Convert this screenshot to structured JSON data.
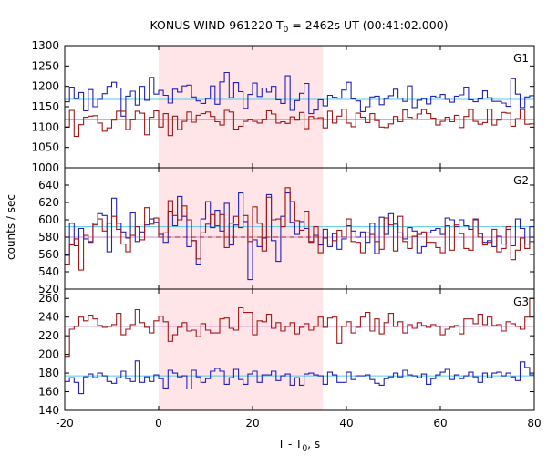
{
  "chart_data": {
    "type": "line",
    "title": "KONUS-WIND 961220 T",
    "title_sub": "0",
    "title_rest": " = 2462s UT (00:41:02.000)",
    "xlabel": "T - T",
    "xlabel_sub": "0",
    "xlabel_rest": ", s",
    "ylabel": "counts / sec",
    "xlim": [
      -20,
      80
    ],
    "x_ticks": [
      -20,
      0,
      20,
      40,
      60,
      80
    ],
    "x_tick_labels": [
      "-20",
      "0",
      "20",
      "40",
      "60",
      "80"
    ],
    "shaded_interval": [
      0,
      35
    ],
    "shade_color": "#ffe4e8",
    "bin_width_s": 1.0,
    "bin_start_s": -20.0,
    "panels": [
      {
        "label": "G1",
        "ylim": [
          1000,
          1300
        ],
        "y_ticks": [
          1000,
          1050,
          1100,
          1150,
          1200,
          1250,
          1300
        ],
        "y_tick_labels": [
          "1000",
          "1050",
          "1100",
          "1150",
          "1200",
          "1250",
          "1300"
        ],
        "series": [
          {
            "color": "#2222bb",
            "values": [
              1162,
              1198,
              1170,
              1185,
              1140,
              1192,
              1150,
              1168,
              1182,
              1200,
              1210,
              1196,
              1127,
              1176,
              1188,
              1154,
              1200,
              1166,
              1222,
              1181,
              1190,
              1178,
              1159,
              1193,
              1186,
              1201,
              1203,
              1174,
              1164,
              1158,
              1170,
              1201,
              1156,
              1211,
              1234,
              1172,
              1209,
              1187,
              1146,
              1180,
              1208,
              1175,
              1196,
              1186,
              1200,
              1167,
              1158,
              1226,
              1141,
              1165,
              1183,
              1207,
              1133,
              1142,
              1167,
              1152,
              1178,
              1173,
              1171,
              1191,
              1210,
              1169,
              1164,
              1138,
              1150,
              1174,
              1176,
              1155,
              1170,
              1177,
              1193,
              1171,
              1163,
              1201,
              1148,
              1166,
              1170,
              1157,
              1176,
              1172,
              1180,
              1168,
              1161,
              1176,
              1179,
              1198,
              1167,
              1162,
              1169,
              1189,
              1172,
              1163,
              1163,
              1159,
              1151,
              1219,
              1181,
              1148,
              1174,
              1177
            ]
          },
          {
            "color": "#a01818",
            "values": [
              1100,
              1141,
              1077,
              1106,
              1124,
              1127,
              1128,
              1110,
              1090,
              1098,
              1117,
              1139,
              1139,
              1094,
              1118,
              1139,
              1134,
              1081,
              1124,
              1140,
              1100,
              1133,
              1079,
              1127,
              1094,
              1114,
              1137,
              1112,
              1129,
              1133,
              1137,
              1126,
              1113,
              1105,
              1141,
              1137,
              1095,
              1102,
              1114,
              1118,
              1114,
              1110,
              1118,
              1140,
              1132,
              1110,
              1113,
              1109,
              1125,
              1117,
              1136,
              1096,
              1126,
              1121,
              1123,
              1098,
              1139,
              1110,
              1127,
              1144,
              1110,
              1101,
              1134,
              1124,
              1111,
              1133,
              1116,
              1100,
              1099,
              1108,
              1126,
              1113,
              1142,
              1124,
              1120,
              1132,
              1143,
              1133,
              1122,
              1105,
              1114,
              1124,
              1113,
              1129,
              1099,
              1126,
              1143,
              1114,
              1107,
              1111,
              1144,
              1105,
              1117,
              1136,
              1134,
              1102,
              1121,
              1143,
              1107,
              1108
            ]
          }
        ],
        "refs": [
          {
            "color": "#55ccee",
            "value": 1168
          },
          {
            "color": "#cc88cc",
            "value": 1118
          }
        ]
      },
      {
        "label": "G2",
        "ylim": [
          520,
          660
        ],
        "y_ticks": [
          520,
          540,
          560,
          580,
          600,
          620,
          640
        ],
        "y_tick_labels": [
          "520",
          "540",
          "560",
          "580",
          "600",
          "620",
          "640"
        ],
        "series": [
          {
            "color": "#2222bb",
            "values": [
              559,
              596,
              570,
              590,
              578,
              574,
              596,
              607,
              605,
              563,
              625,
              596,
              586,
              579,
              608,
              575,
              586,
              594,
              601,
              597,
              583,
              574,
              610,
              593,
              627,
              604,
              569,
              576,
              548,
              601,
              621,
              591,
              611,
              587,
              619,
              571,
              594,
              631,
              598,
              531,
              577,
              569,
              579,
              629,
              576,
              552,
              604,
              631,
              597,
              583,
              598,
              590,
              575,
              582,
              571,
              589,
              569,
              584,
              566,
              578,
              593,
              587,
              580,
              586,
              574,
              596,
              561,
              603,
              583,
              607,
              595,
              585,
              578,
              591,
              587,
              562,
              569,
              585,
              588,
              590,
              583,
              602,
              600,
              592,
              600,
              593,
              589,
              600,
              584,
              574,
              576,
              569,
              581,
              572,
              589,
              570,
              601,
              590,
              572,
              592
            ]
          },
          {
            "color": "#a01818",
            "values": [
              548,
              571,
              578,
              542,
              582,
              575,
              594,
              601,
              587,
              596,
              604,
              589,
              572,
              563,
              582,
              592,
              577,
              614,
              595,
              602,
              580,
              585,
              622,
              605,
              600,
              616,
              600,
              576,
              555,
              585,
              595,
              606,
              593,
              606,
              568,
              596,
              604,
              591,
              605,
              575,
              615,
              596,
              564,
              626,
              600,
              601,
              592,
              637,
              621,
              599,
              588,
              610,
              574,
              592,
              562,
              579,
              572,
              576,
              588,
              580,
              601,
              575,
              574,
              562,
              585,
              583,
              575,
              566,
              602,
              594,
              564,
              604,
              575,
              567,
              581,
              583,
              586,
              574,
              574,
              568,
              562,
              593,
              565,
              594,
              584,
              567,
              565,
              601,
              580,
              571,
              574,
              589,
              563,
              567,
              592,
              554,
              565,
              579,
              567,
              575
            ]
          }
        ],
        "refs": [
          {
            "color": "#55ccee",
            "value": 592
          },
          {
            "color": "#cc88cc",
            "value": 580
          }
        ],
        "dashed_ref": {
          "color": "#a01818",
          "value": 580,
          "x_range": [
            0,
            35
          ]
        }
      },
      {
        "label": "G3",
        "ylim": [
          140,
          270
        ],
        "y_ticks": [
          140,
          160,
          180,
          200,
          220,
          240,
          260
        ],
        "y_tick_labels": [
          "140",
          "160",
          "180",
          "200",
          "220",
          "240",
          "260"
        ],
        "series": [
          {
            "color": "#2222bb",
            "values": [
              171,
              175,
              170,
              158,
              176,
              179,
              175,
              180,
              177,
              171,
              169,
              175,
              182,
              174,
              171,
              193,
              170,
              176,
              171,
              178,
              174,
              164,
              183,
              180,
              176,
              177,
              163,
              183,
              176,
              170,
              174,
              182,
              185,
              182,
              168,
              175,
              184,
              173,
              168,
              179,
              182,
              170,
              178,
              178,
              182,
              172,
              177,
              179,
              167,
              175,
              167,
              179,
              180,
              178,
              177,
              168,
              181,
              178,
              170,
              170,
              181,
              173,
              177,
              177,
              178,
              173,
              169,
              167,
              174,
              176,
              180,
              176,
              183,
              178,
              177,
              175,
              179,
              168,
              174,
              178,
              181,
              184,
              173,
              178,
              174,
              177,
              181,
              176,
              170,
              180,
              175,
              180,
              181,
              177,
              180,
              176,
              172,
              192,
              186,
              178
            ]
          },
          {
            "color": "#a01818",
            "values": [
              198,
              227,
              230,
              240,
              236,
              242,
              238,
              231,
              229,
              230,
              232,
              244,
              221,
              227,
              232,
              248,
              234,
              229,
              223,
              236,
              241,
              235,
              214,
              221,
              229,
              234,
              225,
              226,
              219,
              233,
              226,
              223,
              223,
              238,
              239,
              228,
              226,
              250,
              245,
              245,
              221,
              236,
              235,
              243,
              228,
              234,
              225,
              230,
              234,
              222,
              229,
              233,
              226,
              230,
              240,
              229,
              239,
              240,
              212,
              230,
              235,
              223,
              229,
              240,
              245,
              225,
              238,
              222,
              234,
              244,
              230,
              235,
              223,
              232,
              228,
              234,
              231,
              229,
              232,
              230,
              221,
              227,
              229,
              231,
              222,
              238,
              238,
              233,
              243,
              232,
              240,
              231,
              232,
              225,
              235,
              233,
              230,
              227,
              240,
              260
            ]
          }
        ],
        "refs": [
          {
            "color": "#55ccee",
            "value": 177
          },
          {
            "color": "#cc88cc",
            "value": 230
          }
        ]
      }
    ]
  }
}
